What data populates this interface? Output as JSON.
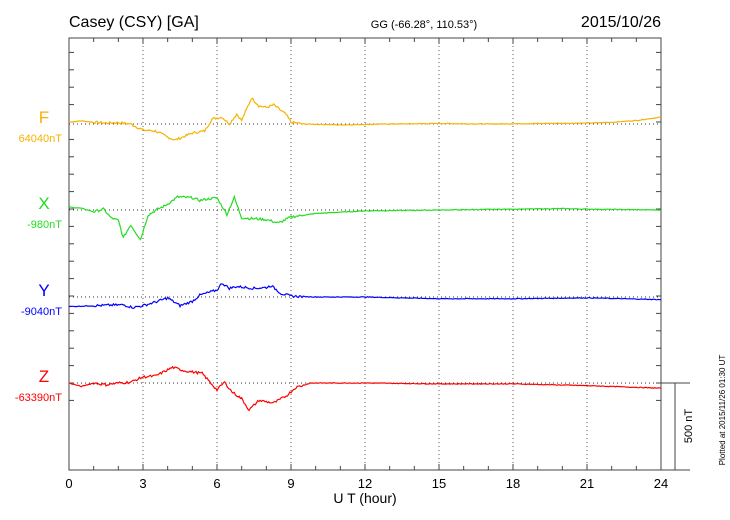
{
  "chart_data": {
    "type": "line",
    "title": "Casey (CSY)  [GA]",
    "coords": "GG (-66.28°, 110.53°)",
    "date": "2015/10/26",
    "xlabel": "U T (hour)",
    "xlim": [
      0,
      24
    ],
    "xticks": [
      "0",
      "3",
      "6",
      "9",
      "12",
      "15",
      "18",
      "21",
      "24"
    ],
    "scale_label": "500 nT",
    "scale_nT": 500,
    "plotted_note": "Plotted at 2015/11/26 01:30 UT",
    "grid": "dotted verticals every 3 h, dotted baseline per component",
    "series": [
      {
        "name": "F",
        "baseline_label": "64040nT",
        "color": "#f7b200",
        "points": [
          [
            0,
            11
          ],
          [
            0.5,
            18
          ],
          [
            1,
            10
          ],
          [
            1.5,
            6
          ],
          [
            2,
            8
          ],
          [
            2.5,
            0
          ],
          [
            3,
            -35
          ],
          [
            3.5,
            -40
          ],
          [
            4,
            -75
          ],
          [
            4.3,
            -92
          ],
          [
            4.7,
            -70
          ],
          [
            5,
            -52
          ],
          [
            5.5,
            -40
          ],
          [
            5.8,
            29
          ],
          [
            6.2,
            40
          ],
          [
            6.5,
            0
          ],
          [
            6.8,
            57
          ],
          [
            7,
            20
          ],
          [
            7.4,
            150
          ],
          [
            7.7,
            105
          ],
          [
            8,
            95
          ],
          [
            8.3,
            110
          ],
          [
            8.8,
            55
          ],
          [
            9,
            10
          ],
          [
            9.5,
            0
          ],
          [
            11,
            -5
          ],
          [
            13,
            0
          ],
          [
            15,
            3
          ],
          [
            17,
            0
          ],
          [
            19,
            3
          ],
          [
            21,
            5
          ],
          [
            22,
            10
          ],
          [
            23,
            20
          ],
          [
            24,
            40
          ]
        ]
      },
      {
        "name": "X",
        "baseline_label": "-980nT",
        "color": "#22dd22",
        "points": [
          [
            0,
            17
          ],
          [
            0.5,
            10
          ],
          [
            1,
            -10
          ],
          [
            1.4,
            5
          ],
          [
            1.7,
            -45
          ],
          [
            2,
            -60
          ],
          [
            2.2,
            -160
          ],
          [
            2.5,
            -85
          ],
          [
            2.9,
            -170
          ],
          [
            3.2,
            -30
          ],
          [
            3.6,
            5
          ],
          [
            3.9,
            25
          ],
          [
            4.4,
            75
          ],
          [
            5,
            70
          ],
          [
            5.3,
            55
          ],
          [
            5.7,
            65
          ],
          [
            6,
            70
          ],
          [
            6.4,
            -25
          ],
          [
            6.7,
            72
          ],
          [
            7,
            -45
          ],
          [
            8,
            -55
          ],
          [
            8.5,
            -75
          ],
          [
            9,
            -40
          ],
          [
            10,
            -20
          ],
          [
            12,
            -5
          ],
          [
            15,
            0
          ],
          [
            18,
            5
          ],
          [
            20,
            8
          ],
          [
            21,
            5
          ],
          [
            24,
            0
          ]
        ]
      },
      {
        "name": "Y",
        "baseline_label": "-9040nT",
        "color": "#0000ff",
        "points": [
          [
            0,
            -55
          ],
          [
            1,
            -50
          ],
          [
            2.2,
            -45
          ],
          [
            2.6,
            -60
          ],
          [
            3,
            -50
          ],
          [
            3.6,
            -25
          ],
          [
            4,
            -5
          ],
          [
            4.5,
            -50
          ],
          [
            5,
            -25
          ],
          [
            5.3,
            10
          ],
          [
            6,
            40
          ],
          [
            6.2,
            80
          ],
          [
            6.5,
            50
          ],
          [
            6.8,
            60
          ],
          [
            7.5,
            50
          ],
          [
            8,
            55
          ],
          [
            8.2,
            65
          ],
          [
            8.6,
            20
          ],
          [
            9,
            5
          ],
          [
            10,
            0
          ],
          [
            12,
            0
          ],
          [
            15,
            -10
          ],
          [
            18,
            -10
          ],
          [
            21,
            -5
          ],
          [
            24,
            -15
          ]
        ]
      },
      {
        "name": "Z",
        "baseline_label": "-63390nT",
        "color": "#ff0000",
        "points": [
          [
            0,
            0
          ],
          [
            0.5,
            -20
          ],
          [
            1,
            0
          ],
          [
            1.5,
            -10
          ],
          [
            2,
            0
          ],
          [
            2.5,
            5
          ],
          [
            3,
            35
          ],
          [
            3.5,
            40
          ],
          [
            4.2,
            90
          ],
          [
            4.7,
            70
          ],
          [
            5.4,
            55
          ],
          [
            6,
            -40
          ],
          [
            6.3,
            5
          ],
          [
            6.6,
            -50
          ],
          [
            7,
            -90
          ],
          [
            7.3,
            -155
          ],
          [
            7.7,
            -100
          ],
          [
            8.3,
            -115
          ],
          [
            8.8,
            -75
          ],
          [
            9.2,
            -25
          ],
          [
            9.8,
            0
          ],
          [
            12,
            0
          ],
          [
            15,
            -5
          ],
          [
            18,
            -5
          ],
          [
            21,
            -15
          ],
          [
            24,
            -30
          ]
        ]
      }
    ]
  }
}
